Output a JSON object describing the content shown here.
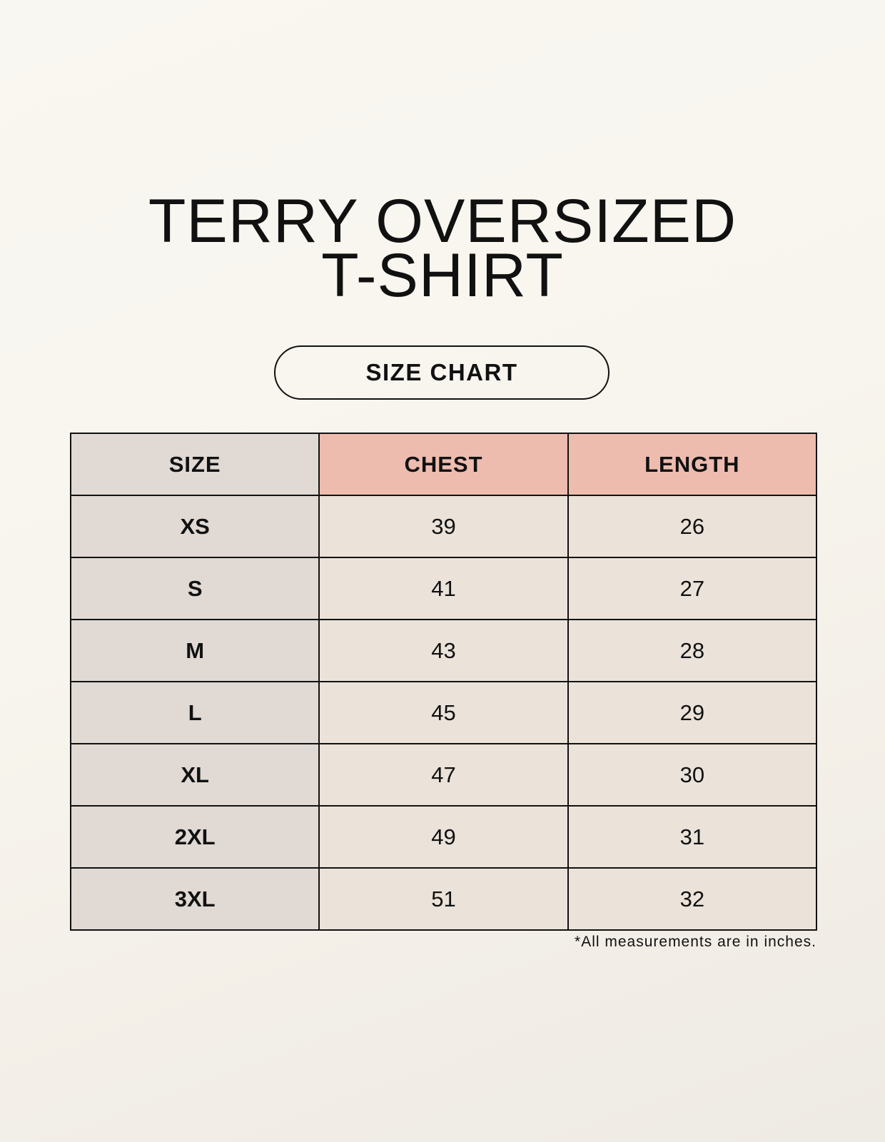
{
  "title_line1": "TERRY OVERSIZED",
  "title_line2": "T-SHIRT",
  "badge": "SIZE CHART",
  "table": {
    "headers": [
      "SIZE",
      "CHEST",
      "LENGTH"
    ],
    "rows": [
      [
        "XS",
        "39",
        "26"
      ],
      [
        "S",
        "41",
        "27"
      ],
      [
        "M",
        "43",
        "28"
      ],
      [
        "L",
        "45",
        "29"
      ],
      [
        "XL",
        "47",
        "30"
      ],
      [
        "2XL",
        "49",
        "31"
      ],
      [
        "3XL",
        "51",
        "32"
      ]
    ]
  },
  "footnote": "*All measurements are in inches.",
  "colors": {
    "header_accent": "#edbcae",
    "size_column": "#e0d9d4",
    "cell": "#ebe3da"
  }
}
